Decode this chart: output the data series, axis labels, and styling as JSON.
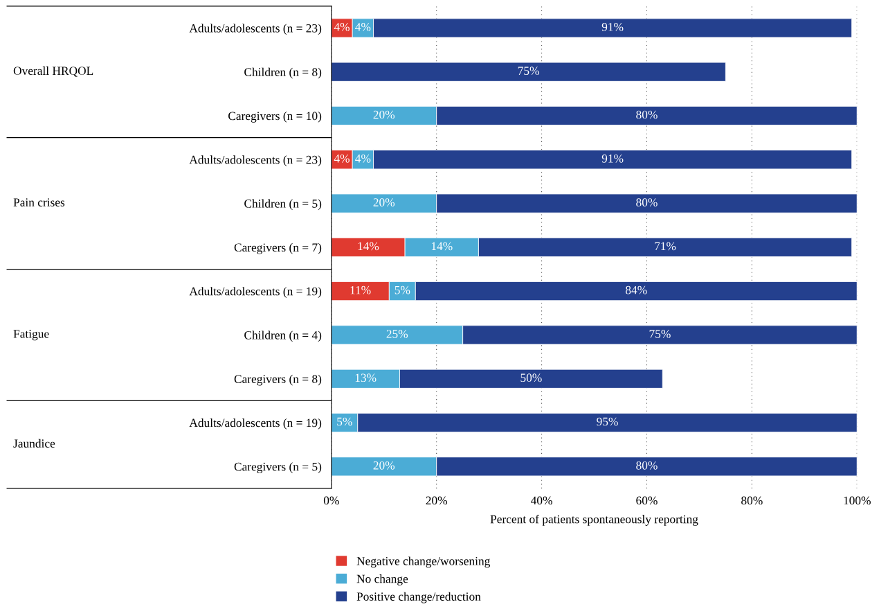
{
  "chart_data": {
    "type": "bar",
    "orientation": "horizontal",
    "stacked": true,
    "categories": [
      "Adults/adolescents (n = 23)",
      "Children (n = 8)",
      "Caregivers (n = 10)",
      "Adults/adolescents (n = 23)",
      "Children (n = 5)",
      "Caregivers (n = 7)",
      "Adults/adolescents (n = 19)",
      "Children (n = 4)",
      "Caregivers (n = 8)",
      "Adults/adolescents (n = 19)",
      "Caregivers (n = 5)"
    ],
    "series": [
      {
        "name": "Negative change/worsening",
        "color": "#e03a30",
        "values": [
          4,
          null,
          null,
          4,
          null,
          14,
          11,
          null,
          null,
          null,
          null
        ],
        "value_labels": [
          "4%",
          null,
          null,
          "4%",
          null,
          "14%",
          "11%",
          null,
          null,
          null,
          null
        ]
      },
      {
        "name": "No change",
        "color": "#4bacd6",
        "values": [
          4,
          null,
          20,
          4,
          20,
          14,
          5,
          25,
          13,
          5,
          20
        ],
        "value_labels": [
          "4%",
          null,
          "20%",
          "4%",
          "20%",
          "14%",
          "5%",
          "25%",
          "13%",
          "5%",
          "20%"
        ]
      },
      {
        "name": "Positive change/reduction",
        "color": "#24408e",
        "values": [
          91,
          75,
          80,
          91,
          80,
          71,
          84,
          75,
          50,
          95,
          80
        ],
        "value_labels": [
          "91%",
          "75%",
          "80%",
          "91%",
          "80%",
          "71%",
          "84%",
          "75%",
          "50%",
          "95%",
          "80%"
        ]
      }
    ],
    "xlabel": "Percent of patients spontaneously reporting",
    "xlim": [
      0,
      100
    ],
    "xticks": [
      {
        "value": 0,
        "label": "0%"
      },
      {
        "value": 20,
        "label": "20%"
      },
      {
        "value": 40,
        "label": "40%"
      },
      {
        "value": 60,
        "label": "60%"
      },
      {
        "value": 80,
        "label": "80%"
      },
      {
        "value": 100,
        "label": "100%"
      }
    ],
    "grid": "x",
    "legend": "bottom",
    "annotations": [
      "Overall HRQOL",
      "Pain crises",
      "Fatigue",
      "Jaundice"
    ]
  }
}
